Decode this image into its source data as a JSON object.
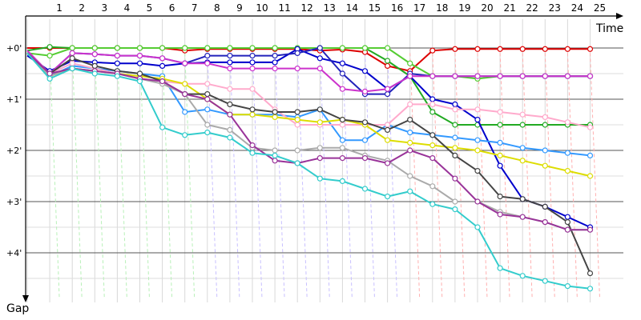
{
  "chart_data": {
    "type": "line",
    "title": "",
    "xlabel": "Time",
    "ylabel": "Gap",
    "x_ticks": [
      "1",
      "2",
      "3",
      "4",
      "5",
      "6",
      "7",
      "8",
      "9",
      "10",
      "11",
      "12",
      "13",
      "14",
      "15",
      "16",
      "17",
      "18",
      "19",
      "20",
      "21",
      "22",
      "23",
      "24",
      "25"
    ],
    "y_ticks": [
      "+0'",
      "+1'",
      "+2'",
      "+3'",
      "+4'"
    ],
    "x_range": [
      0,
      26
    ],
    "y_range_minutes": [
      -0.4,
      5.0
    ],
    "y_inverted": true,
    "grid": true,
    "legend": "none",
    "series": [
      {
        "color": "#dd0000",
        "values": [
          0,
          0,
          0,
          0,
          0,
          0,
          0,
          0.05,
          0.02,
          0.02,
          0.02,
          0.02,
          0.02,
          0.05,
          0.03,
          0.08,
          0.35,
          0.45,
          0.05,
          0.02,
          0.02,
          0.02,
          0.02,
          0.02,
          0.02,
          0.02
        ]
      },
      {
        "color": "#22aa22",
        "values": [
          0.05,
          -0.02,
          0,
          0,
          0,
          0,
          0,
          0,
          0,
          0,
          0,
          0,
          0,
          0,
          0,
          0,
          0.25,
          0.55,
          1.25,
          1.5,
          1.5,
          1.5,
          1.5,
          1.5,
          1.5,
          1.5
        ]
      },
      {
        "color": "#55cc33",
        "values": [
          0.1,
          0.15,
          0,
          0,
          0,
          0,
          0,
          0,
          0,
          0,
          0,
          0,
          0,
          0,
          0,
          0,
          0,
          0.3,
          0.55,
          0.55,
          0.6,
          0.55,
          0.55,
          0.55,
          0.55,
          0.55
        ]
      },
      {
        "color": "#0000cc",
        "values": [
          0.15,
          0.45,
          0.25,
          0.28,
          0.3,
          0.3,
          0.35,
          0.3,
          0.28,
          0.28,
          0.28,
          0.28,
          0.02,
          0.2,
          0.3,
          0.45,
          0.8,
          0.55,
          1.0,
          1.1,
          1.4,
          2.3,
          2.95,
          3.1,
          3.3,
          3.5
        ]
      },
      {
        "color": "#2222bb",
        "values": [
          0.1,
          0.5,
          0.1,
          0.12,
          0.15,
          0.15,
          0.2,
          0.3,
          0.15,
          0.15,
          0.15,
          0.15,
          0.1,
          0.0,
          0.5,
          0.9,
          0.9,
          0.5,
          0.55,
          0.55,
          0.55,
          0.55,
          0.55,
          0.55,
          0.55,
          0.55
        ]
      },
      {
        "color": "#cc33cc",
        "values": [
          0.05,
          0.5,
          0.1,
          0.12,
          0.15,
          0.15,
          0.2,
          0.3,
          0.3,
          0.4,
          0.4,
          0.4,
          0.4,
          0.4,
          0.8,
          0.85,
          0.8,
          0.55,
          0.55,
          0.55,
          0.55,
          0.55,
          0.55,
          0.55,
          0.55,
          0.55
        ]
      },
      {
        "color": "#3399ff",
        "values": [
          0.1,
          0.55,
          0.35,
          0.4,
          0.45,
          0.5,
          0.55,
          1.25,
          1.2,
          1.3,
          1.3,
          1.3,
          1.35,
          1.2,
          1.8,
          1.8,
          1.5,
          1.65,
          1.7,
          1.75,
          1.8,
          1.85,
          1.95,
          2.0,
          2.05,
          2.1
        ]
      },
      {
        "color": "#ffaacc",
        "values": [
          0.1,
          0.5,
          0.3,
          0.4,
          0.5,
          0.6,
          0.65,
          0.7,
          0.7,
          0.8,
          0.8,
          1.2,
          1.5,
          1.5,
          1.5,
          1.5,
          1.5,
          1.1,
          1.1,
          1.2,
          1.2,
          1.25,
          1.3,
          1.35,
          1.45,
          1.55
        ]
      },
      {
        "color": "#dddd00",
        "values": [
          0.1,
          0.55,
          0.4,
          0.45,
          0.5,
          0.55,
          0.6,
          0.7,
          1.0,
          1.3,
          1.3,
          1.35,
          1.4,
          1.45,
          1.4,
          1.5,
          1.8,
          1.85,
          1.9,
          1.95,
          2.0,
          2.1,
          2.2,
          2.3,
          2.4,
          2.5
        ]
      },
      {
        "color": "#444444",
        "values": [
          0.1,
          0.5,
          0.2,
          0.35,
          0.45,
          0.5,
          0.65,
          0.9,
          0.9,
          1.1,
          1.2,
          1.25,
          1.25,
          1.2,
          1.4,
          1.45,
          1.6,
          1.4,
          1.7,
          2.1,
          2.4,
          2.9,
          2.95,
          3.1,
          3.4,
          4.4
        ]
      },
      {
        "color": "#aaaaaa",
        "values": [
          0.1,
          0.55,
          0.4,
          0.45,
          0.5,
          0.6,
          0.7,
          0.9,
          1.5,
          1.6,
          1.95,
          2.0,
          2.0,
          1.95,
          1.95,
          2.1,
          2.2,
          2.5,
          2.7,
          3.0,
          3.0,
          3.2,
          3.3,
          3.4,
          3.55,
          3.55
        ]
      },
      {
        "color": "#993399",
        "values": [
          0.1,
          0.5,
          0.4,
          0.45,
          0.5,
          0.6,
          0.65,
          0.9,
          1.0,
          1.3,
          1.9,
          2.2,
          2.25,
          2.15,
          2.15,
          2.15,
          2.25,
          2.0,
          2.15,
          2.55,
          3.0,
          3.25,
          3.3,
          3.4,
          3.55,
          3.55
        ]
      },
      {
        "color": "#33cccc",
        "values": [
          0.1,
          0.6,
          0.4,
          0.5,
          0.55,
          0.65,
          1.55,
          1.7,
          1.65,
          1.75,
          2.05,
          2.1,
          2.25,
          2.55,
          2.6,
          2.75,
          2.9,
          2.8,
          3.05,
          3.15,
          3.5,
          4.3,
          4.45,
          4.55,
          4.65,
          4.7
        ]
      }
    ]
  }
}
